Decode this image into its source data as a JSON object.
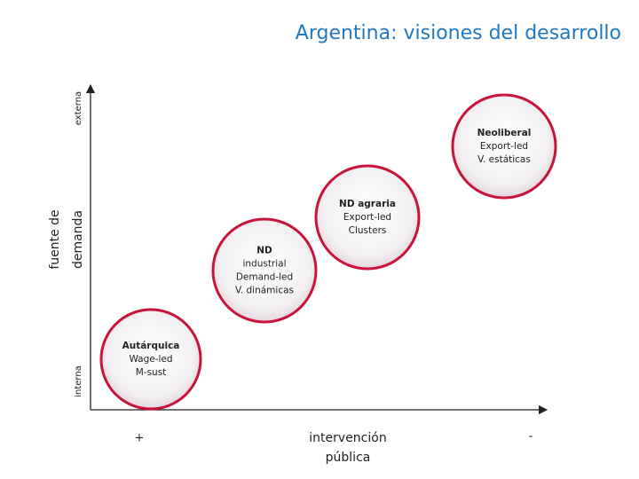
{
  "title": "Argentina: visiones del desarrollo",
  "y_axis": {
    "top": "externa",
    "label": [
      "fuente de",
      "demanda"
    ],
    "bottom": "interna"
  },
  "x_axis": {
    "left": "+",
    "label": [
      "intervención",
      "pública"
    ],
    "right": "-"
  },
  "nodes": [
    {
      "lines": [
        "Neoliberal",
        "Export-led",
        "V. estáticas"
      ]
    },
    {
      "lines": [
        "ND agraria",
        "Export-led",
        "Clusters"
      ]
    },
    {
      "lines": [
        "ND",
        "industrial",
        "Demand-led",
        "V. dinámicas"
      ]
    },
    {
      "lines": [
        "Autárquica",
        "Wage-led",
        "M-sust"
      ]
    }
  ]
}
